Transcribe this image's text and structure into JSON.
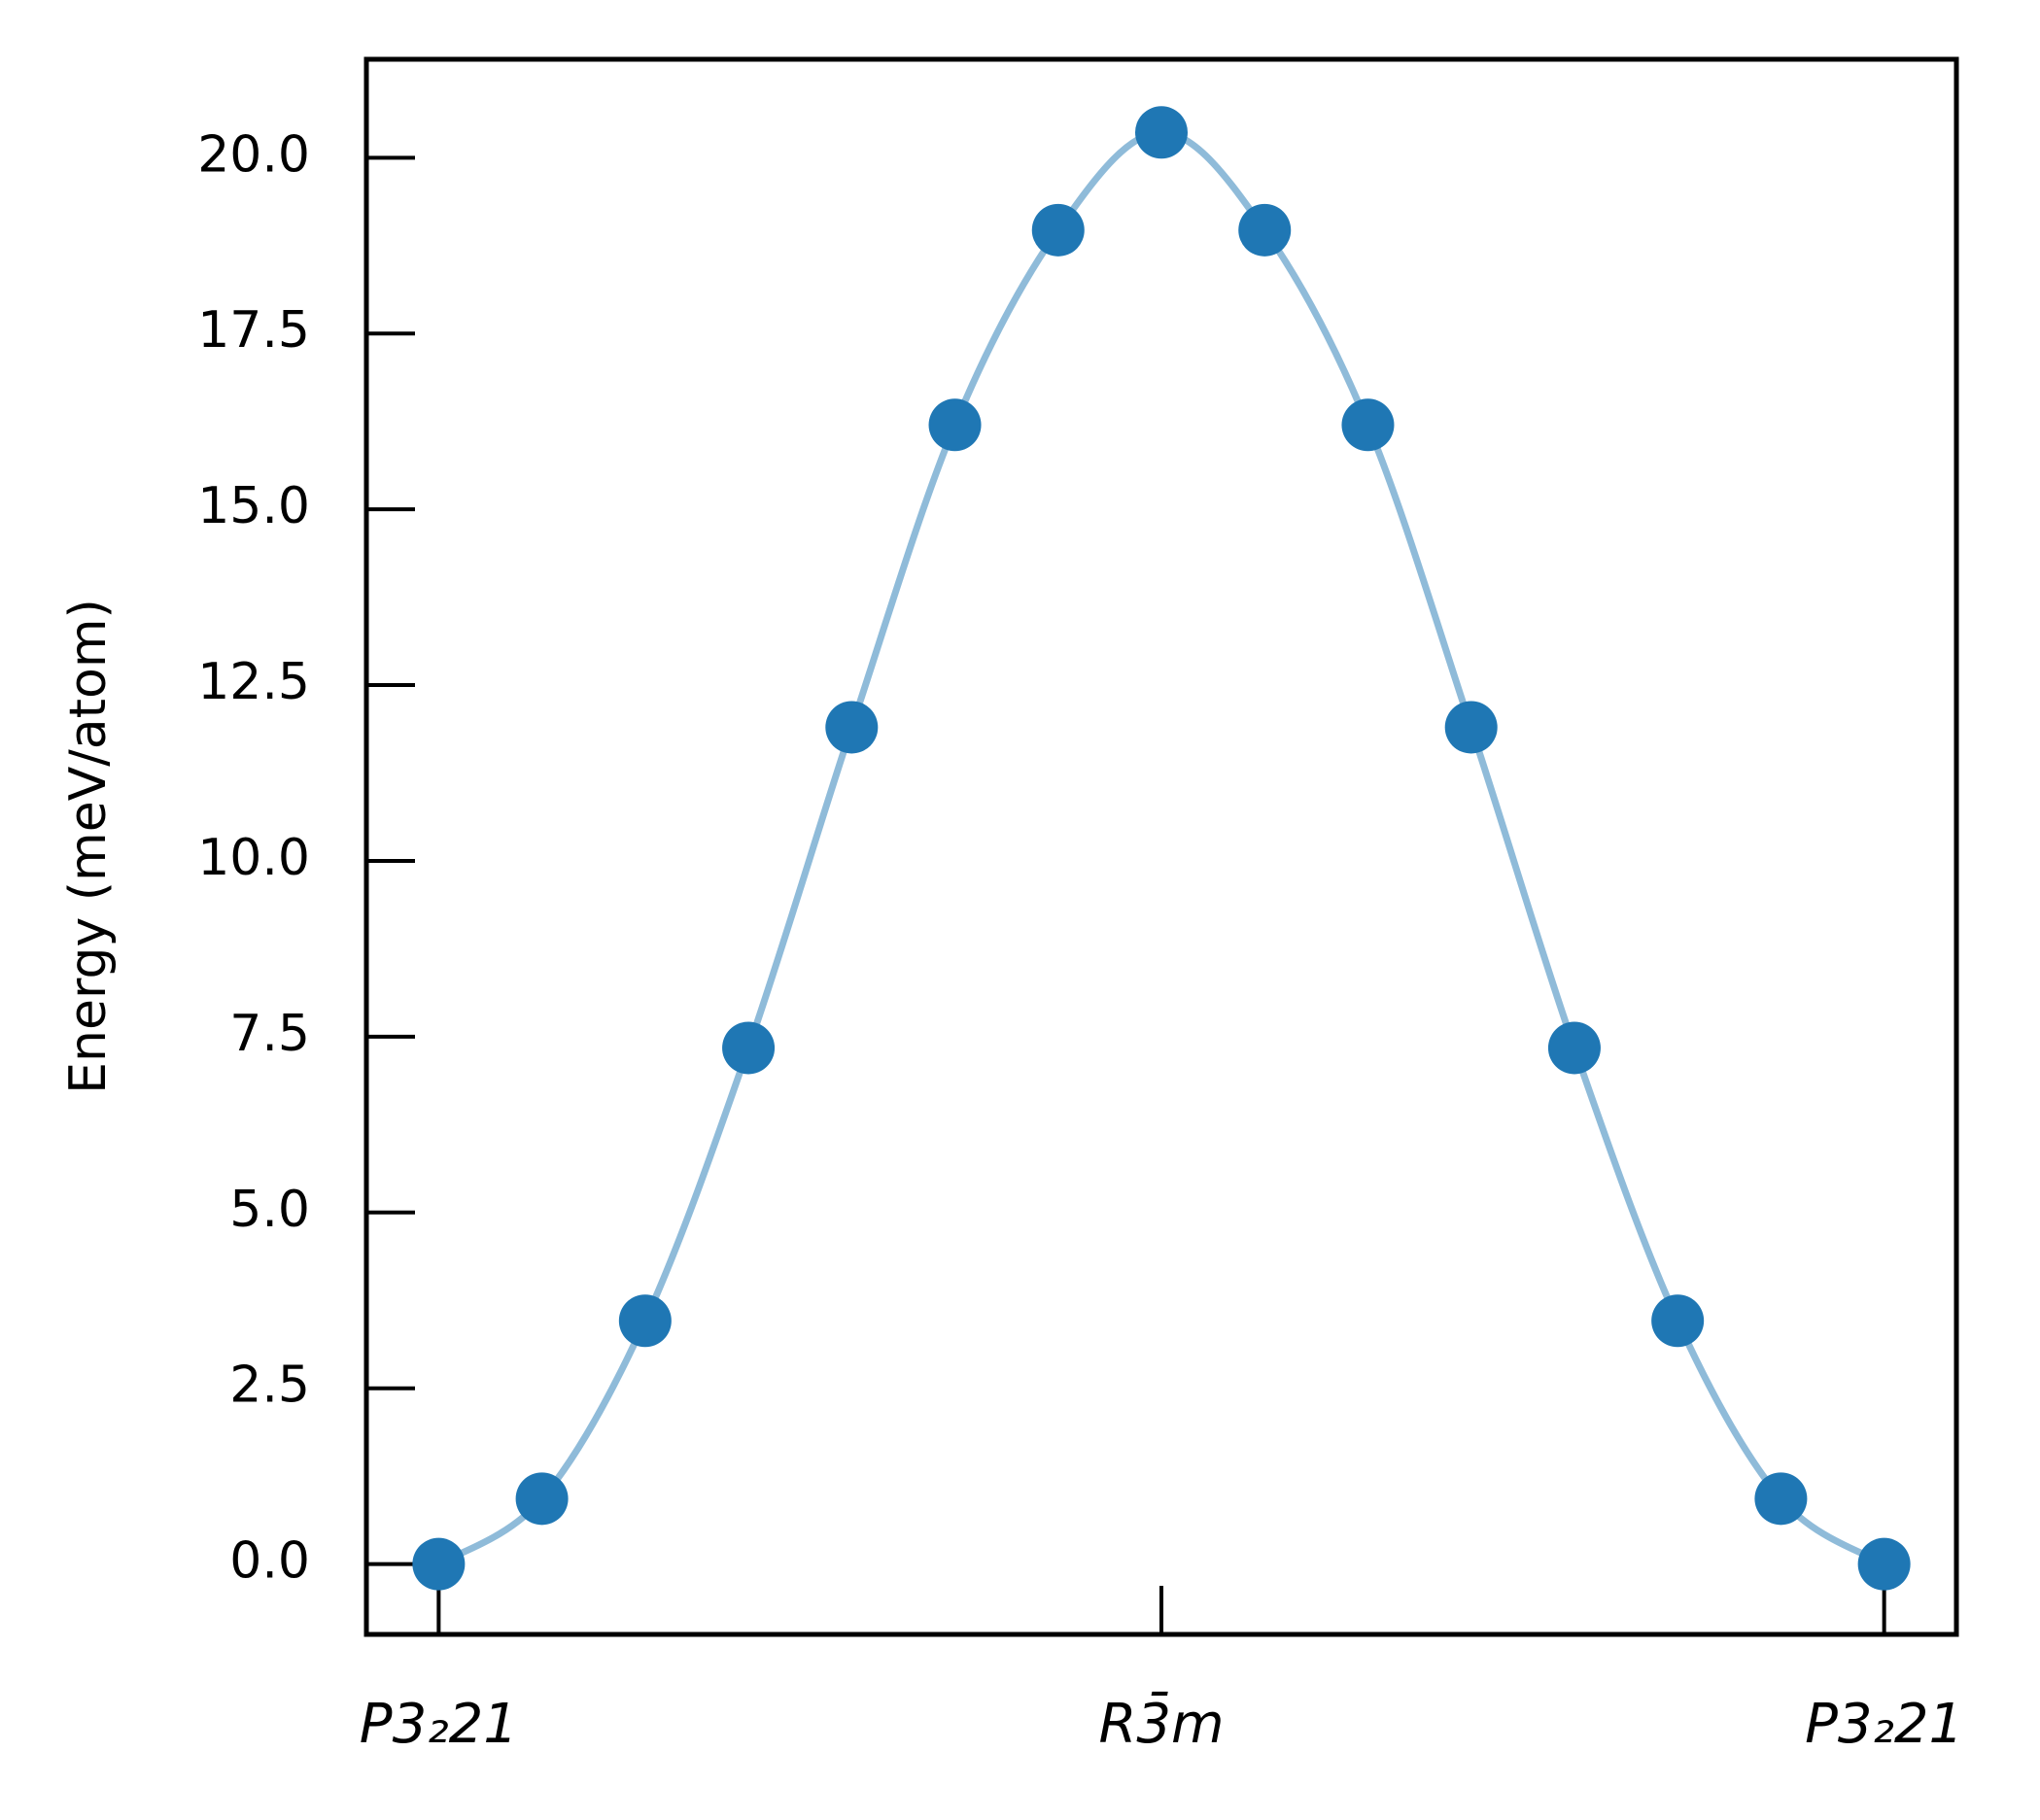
{
  "chart_data": {
    "type": "line",
    "y_label": "Energy (meV/atom)",
    "x": [
      0,
      1,
      2,
      3,
      4,
      5,
      6,
      7,
      8,
      9,
      10,
      11,
      12,
      13,
      14
    ],
    "series": [
      {
        "name": "Energy",
        "color": "#1f77b4",
        "line_color": "#8fbbd9",
        "values": [
          0.0,
          0.93,
          3.46,
          7.34,
          11.9,
          16.2,
          18.97,
          20.36,
          18.97,
          16.2,
          11.9,
          7.34,
          3.46,
          0.93,
          0.0
        ]
      }
    ],
    "xlim": [
      -0.7,
      14.7
    ],
    "ylim": [
      -1.0,
      21.4
    ],
    "xticks": [
      {
        "value": 0,
        "label": "P3₂21"
      },
      {
        "value": 7,
        "label": "R3̄m"
      },
      {
        "value": 14,
        "label": "P3₂21"
      }
    ],
    "yticks": [
      {
        "value": 0,
        "label": "0.0"
      },
      {
        "value": 2.5,
        "label": "2.5"
      },
      {
        "value": 5,
        "label": "5.0"
      },
      {
        "value": 7.5,
        "label": "7.5"
      },
      {
        "value": 10,
        "label": "10.0"
      },
      {
        "value": 12.5,
        "label": "12.5"
      },
      {
        "value": 15,
        "label": "15.0"
      },
      {
        "value": 17.5,
        "label": "17.5"
      },
      {
        "value": 20,
        "label": "20.0"
      }
    ],
    "grid": false
  }
}
